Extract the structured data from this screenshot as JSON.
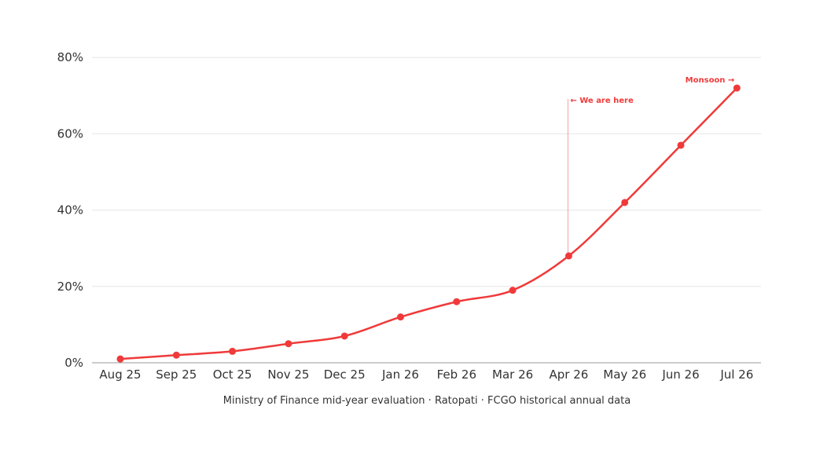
{
  "chart_data": {
    "type": "line",
    "categories": [
      "Aug 25",
      "Sep 25",
      "Oct 25",
      "Nov 25",
      "Dec 25",
      "Jan 26",
      "Feb 26",
      "Mar 26",
      "Apr 26",
      "May 26",
      "Jun 26",
      "Jul 26"
    ],
    "series": [
      {
        "values": [
          1,
          2,
          3,
          5,
          7,
          12,
          16,
          19,
          28,
          42,
          57,
          72
        ]
      }
    ],
    "ylim": [
      0,
      80
    ],
    "yticks": [
      0,
      20,
      40,
      60,
      80
    ],
    "ytick_labels": [
      "0%",
      "20%",
      "40%",
      "60%",
      "80%"
    ],
    "grid": true,
    "annotations": [
      {
        "text": "← We are here",
        "category": "Apr 26"
      },
      {
        "text": "Monsoon →",
        "category": "Jul 26"
      }
    ],
    "source": "Ministry of Finance mid-year evaluation · Ratopati · FCGO historical annual data"
  },
  "colors": {
    "line": "#f03a3a",
    "grid": "#e6e6e6",
    "axis": "#999999",
    "text": "#333333",
    "annotation_line": "#f4a0a0"
  }
}
